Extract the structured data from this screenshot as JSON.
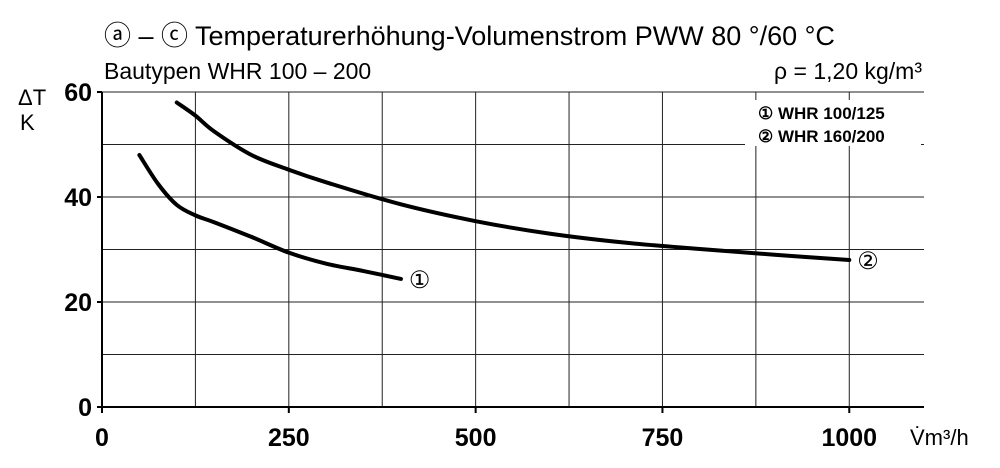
{
  "chart_data": {
    "type": "line",
    "title": "ⓐ – ⓒ Temperaturerhöhung-Volumenstrom PWW 80 °/60 °C",
    "subtitle": "Bautypen WHR 100 – 200",
    "annotation": "ρ = 1,20 kg/m³",
    "xlabel": "V̇m³/h",
    "ylabel_top": "ΔT",
    "ylabel_unit": "K",
    "xlim": [
      0,
      1100
    ],
    "ylim": [
      0,
      60
    ],
    "xticks": [
      0,
      250,
      500,
      750,
      1000
    ],
    "xtick_labels": [
      "0",
      "250",
      "500",
      "750",
      "1000"
    ],
    "yticks": [
      0,
      20,
      40,
      60
    ],
    "ytick_labels": [
      "0",
      "20",
      "40",
      "60"
    ],
    "grid": {
      "x_every": 125,
      "y_every": 10
    },
    "legend_position": "top-right",
    "series": [
      {
        "name": "① WHR 100/125",
        "marker": "①",
        "x": [
          50,
          75,
          100,
          125,
          150,
          200,
          250,
          300,
          350,
          400
        ],
        "y": [
          48,
          42.5,
          38.5,
          36.5,
          35.2,
          32.4,
          29.4,
          27.3,
          25.9,
          24.4
        ]
      },
      {
        "name": "② WHR 160/200",
        "marker": "②",
        "x": [
          100,
          125,
          150,
          200,
          250,
          300,
          400,
          500,
          600,
          700,
          800,
          900,
          1000
        ],
        "y": [
          58,
          55.5,
          52.5,
          48,
          45.2,
          42.8,
          38.6,
          35.4,
          33.0,
          31.3,
          30.1,
          29.0,
          28.0
        ]
      }
    ]
  }
}
